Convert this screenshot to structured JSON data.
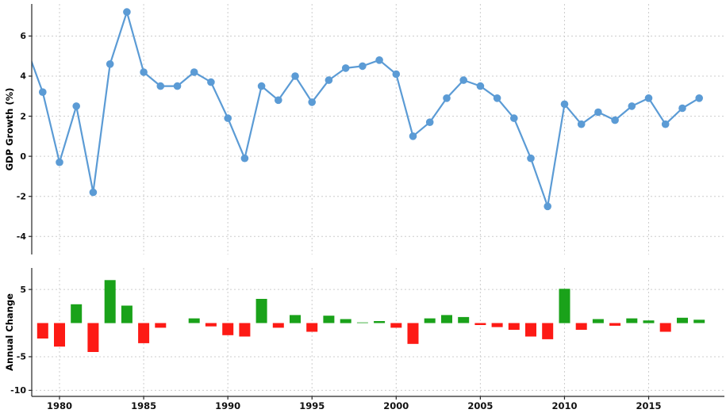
{
  "chart_data": [
    {
      "type": "line",
      "ylabel": "GDP Growth (%)",
      "xlabel": "",
      "x": [
        1978,
        1979,
        1980,
        1981,
        1982,
        1983,
        1984,
        1985,
        1986,
        1987,
        1988,
        1989,
        1990,
        1991,
        1992,
        1993,
        1994,
        1995,
        1996,
        1997,
        1998,
        1999,
        2000,
        2001,
        2002,
        2003,
        2004,
        2005,
        2006,
        2007,
        2008,
        2009,
        2010,
        2011,
        2012,
        2013,
        2014,
        2015,
        2016,
        2017,
        2018
      ],
      "values": [
        5.5,
        3.2,
        -0.3,
        2.5,
        -1.8,
        4.6,
        7.2,
        4.2,
        3.5,
        3.5,
        4.2,
        3.7,
        1.9,
        -0.1,
        3.5,
        2.8,
        4.0,
        2.7,
        3.8,
        4.4,
        4.5,
        4.8,
        4.1,
        1.0,
        1.7,
        2.9,
        3.8,
        3.5,
        2.9,
        1.9,
        -0.1,
        -2.5,
        2.6,
        1.6,
        2.2,
        1.8,
        2.5,
        2.9,
        1.6,
        2.4,
        2.9
      ],
      "yticks": [
        6,
        4,
        2,
        0,
        -2,
        -4
      ],
      "ylim": [
        -4.9,
        7.6
      ],
      "line_color": "#5b9bd5",
      "marker": "circle",
      "grid": "dashed"
    },
    {
      "type": "bar",
      "ylabel": "Annual Change",
      "xlabel": "",
      "x": [
        1979,
        1980,
        1981,
        1982,
        1983,
        1984,
        1985,
        1986,
        1987,
        1988,
        1989,
        1990,
        1991,
        1992,
        1993,
        1994,
        1995,
        1996,
        1997,
        1998,
        1999,
        2000,
        2001,
        2002,
        2003,
        2004,
        2005,
        2006,
        2007,
        2008,
        2009,
        2010,
        2011,
        2012,
        2013,
        2014,
        2015,
        2016,
        2017,
        2018
      ],
      "values": [
        -2.3,
        -3.5,
        2.8,
        -4.3,
        6.4,
        2.6,
        -3.0,
        -0.7,
        0.0,
        0.7,
        -0.5,
        -1.8,
        -2.0,
        3.6,
        -0.7,
        1.2,
        -1.3,
        1.1,
        0.6,
        0.1,
        0.3,
        -0.7,
        -3.1,
        0.7,
        1.2,
        0.9,
        -0.3,
        -0.6,
        -1.0,
        -2.0,
        -2.4,
        5.1,
        -1.0,
        0.6,
        -0.4,
        0.7,
        0.4,
        -1.3,
        0.8,
        0.5
      ],
      "yticks": [
        5,
        -5,
        -10
      ],
      "ylim": [
        -10.9,
        8.2
      ],
      "positive_color": "#1aa21a",
      "negative_color": "#fd1a15",
      "grid": "dashed"
    }
  ],
  "x_axis": {
    "ticks": [
      1980,
      1985,
      1990,
      1995,
      2000,
      2005,
      2010,
      2015
    ],
    "xlim": [
      1978.35,
      2019.5
    ]
  },
  "style": {
    "grid_color": "#cccccc",
    "spine_color": "#262626",
    "text_color": "#111111"
  }
}
